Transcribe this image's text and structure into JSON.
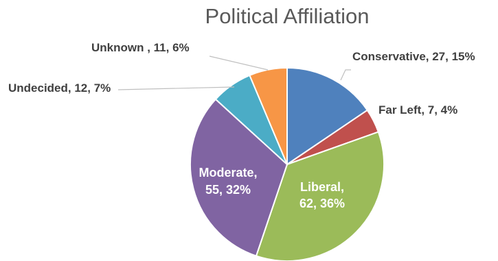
{
  "chart_data": {
    "type": "pie",
    "title": "Political Affiliation",
    "slices": [
      {
        "category": "Conservative",
        "value": 27,
        "percent": "15%",
        "label": "Conservative, 27, 15%",
        "color": "#4F81BD",
        "label_position": "outside"
      },
      {
        "category": "Far Left",
        "value": 7,
        "percent": "4%",
        "label": "Far Left, 7, 4%",
        "color": "#C0504D",
        "label_position": "outside"
      },
      {
        "category": "Liberal",
        "value": 62,
        "percent": "36%",
        "label_lines": [
          "Liberal,",
          "62, 36%"
        ],
        "color": "#9BBB59",
        "label_position": "inside"
      },
      {
        "category": "Moderate",
        "value": 55,
        "percent": "32%",
        "label_lines": [
          "Moderate,",
          "55, 32%"
        ],
        "color": "#8064A2",
        "label_position": "inside"
      },
      {
        "category": "Undecided",
        "value": 12,
        "percent": "7%",
        "label": "Undecided, 12, 7%",
        "color": "#4BACC6",
        "label_position": "outside"
      },
      {
        "category": "Unknown",
        "value": 11,
        "percent": "6%",
        "label": "Unknown , 11, 6%",
        "color": "#F79646",
        "label_position": "outside"
      }
    ],
    "legend": "none"
  }
}
